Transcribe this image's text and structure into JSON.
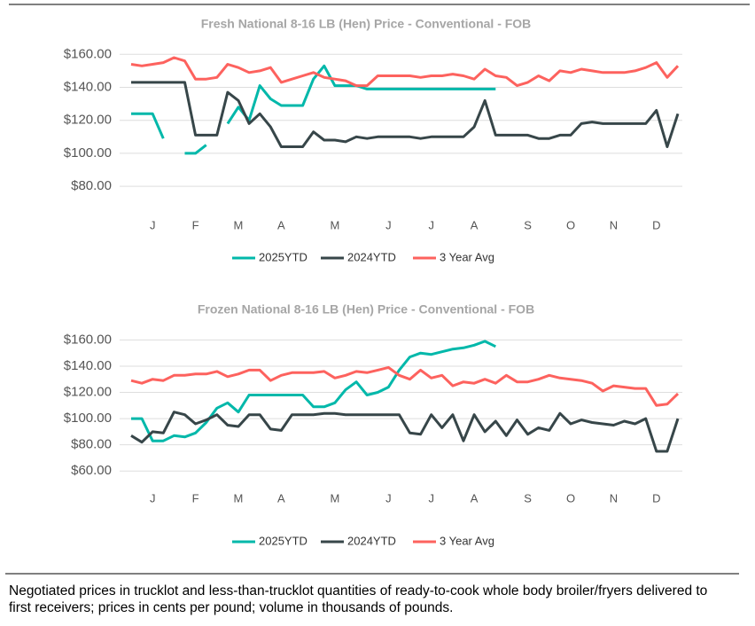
{
  "chart_data": [
    {
      "type": "line",
      "title": "Fresh National 8-16 LB (Hen) Price - Conventional - FOB",
      "categories": [
        null,
        null,
        "J",
        null,
        null,
        null,
        "F",
        null,
        null,
        null,
        "M",
        null,
        null,
        null,
        "A",
        null,
        null,
        null,
        null,
        "M",
        null,
        null,
        null,
        null,
        "J",
        null,
        null,
        null,
        "J",
        null,
        null,
        null,
        "A",
        null,
        null,
        null,
        null,
        "S",
        null,
        null,
        null,
        "O",
        null,
        null,
        null,
        "N",
        null,
        null,
        null,
        "D",
        null,
        null
      ],
      "ylim": [
        65,
        165
      ],
      "yticks": [
        {
          "value": 80,
          "label": "$80.00"
        },
        {
          "value": 100,
          "label": "$100.00"
        },
        {
          "value": 120,
          "label": "$120.00"
        },
        {
          "value": 140,
          "label": "$140.00"
        },
        {
          "value": 160,
          "label": "$160.00"
        }
      ],
      "grid": true,
      "legend": "bottom",
      "series": [
        {
          "name": "2025YTD",
          "color": "#01b8aa",
          "values": [
            124,
            124,
            124,
            109,
            null,
            100,
            100,
            105,
            null,
            118,
            128,
            120,
            141,
            133,
            129,
            129,
            129,
            145,
            153,
            141,
            141,
            141,
            139,
            139,
            139,
            139,
            139,
            139,
            139,
            139,
            139,
            139,
            139,
            139,
            139,
            null,
            null,
            null,
            null,
            null,
            null,
            null,
            null,
            null,
            null,
            null,
            null,
            null,
            null,
            null,
            null,
            null
          ]
        },
        {
          "name": "2024YTD",
          "color": "#374649",
          "values": [
            143,
            143,
            143,
            143,
            143,
            143,
            111,
            111,
            111,
            137,
            132,
            118,
            124,
            116,
            104,
            104,
            104,
            113,
            108,
            108,
            107,
            110,
            109,
            110,
            110,
            110,
            110,
            109,
            110,
            110,
            110,
            110,
            116,
            132,
            111,
            111,
            111,
            111,
            109,
            109,
            111,
            111,
            118,
            119,
            118,
            118,
            118,
            118,
            118,
            126,
            104,
            124
          ]
        },
        {
          "name": "3 Year Avg",
          "color": "#fd625e",
          "values": [
            154,
            153,
            154,
            155,
            158,
            156,
            145,
            145,
            146,
            154,
            152,
            149,
            150,
            152,
            143,
            145,
            147,
            149,
            146,
            145,
            144,
            141,
            141,
            147,
            147,
            147,
            147,
            146,
            147,
            147,
            148,
            147,
            145,
            151,
            147,
            146,
            141,
            143,
            147,
            144,
            150,
            149,
            151,
            150,
            149,
            149,
            149,
            150,
            152,
            155,
            146,
            153
          ]
        }
      ]
    },
    {
      "type": "line",
      "title": "Frozen National 8-16 LB (Hen) Price - Conventional - FOB",
      "categories": [
        null,
        null,
        "J",
        null,
        null,
        null,
        "F",
        null,
        null,
        null,
        "M",
        null,
        null,
        null,
        "A",
        null,
        null,
        null,
        null,
        "M",
        null,
        null,
        null,
        null,
        "J",
        null,
        null,
        null,
        "J",
        null,
        null,
        null,
        "A",
        null,
        null,
        null,
        null,
        "S",
        null,
        null,
        null,
        "O",
        null,
        null,
        null,
        "N",
        null,
        null,
        null,
        "D",
        null,
        null
      ],
      "ylim": [
        50,
        165
      ],
      "yticks": [
        {
          "value": 60,
          "label": "$60.00"
        },
        {
          "value": 80,
          "label": "$80.00"
        },
        {
          "value": 100,
          "label": "$100.00"
        },
        {
          "value": 120,
          "label": "$120.00"
        },
        {
          "value": 140,
          "label": "$140.00"
        },
        {
          "value": 160,
          "label": "$160.00"
        }
      ],
      "grid": true,
      "legend": "bottom",
      "series": [
        {
          "name": "2025YTD",
          "color": "#01b8aa",
          "values": [
            100,
            100,
            83,
            83,
            87,
            86,
            89,
            97,
            108,
            112,
            105,
            118,
            118,
            118,
            118,
            118,
            118,
            109,
            109,
            112,
            122,
            128,
            118,
            120,
            124,
            137,
            147,
            150,
            149,
            151,
            153,
            154,
            156,
            159,
            155,
            null,
            null,
            null,
            null,
            null,
            null,
            null,
            null,
            null,
            null,
            null,
            null,
            null,
            null,
            null,
            null,
            null
          ]
        },
        {
          "name": "2024YTD",
          "color": "#374649",
          "values": [
            87,
            82,
            90,
            89,
            105,
            103,
            96,
            99,
            103,
            95,
            94,
            103,
            103,
            92,
            91,
            103,
            103,
            103,
            104,
            104,
            103,
            103,
            103,
            103,
            103,
            103,
            89,
            88,
            103,
            93,
            103,
            83,
            103,
            90,
            98,
            87,
            99,
            88,
            93,
            91,
            104,
            96,
            99,
            97,
            96,
            95,
            98,
            96,
            100,
            75,
            75,
            100
          ]
        },
        {
          "name": "3 Year Avg",
          "color": "#fd625e",
          "values": [
            129,
            127,
            130,
            129,
            133,
            133,
            134,
            134,
            136,
            132,
            134,
            137,
            137,
            129,
            133,
            135,
            135,
            135,
            136,
            131,
            133,
            136,
            135,
            137,
            139,
            133,
            130,
            137,
            131,
            133,
            125,
            128,
            127,
            130,
            127,
            133,
            128,
            128,
            130,
            133,
            131,
            130,
            129,
            127,
            121,
            125,
            124,
            123,
            123,
            110,
            111,
            119
          ]
        }
      ]
    }
  ],
  "footnote": "Negotiated prices in trucklot and less-than-trucklot quantities of ready-to-cook whole body broiler/fryers delivered to first receivers; prices in cents per pound; volume in thousands of pounds."
}
